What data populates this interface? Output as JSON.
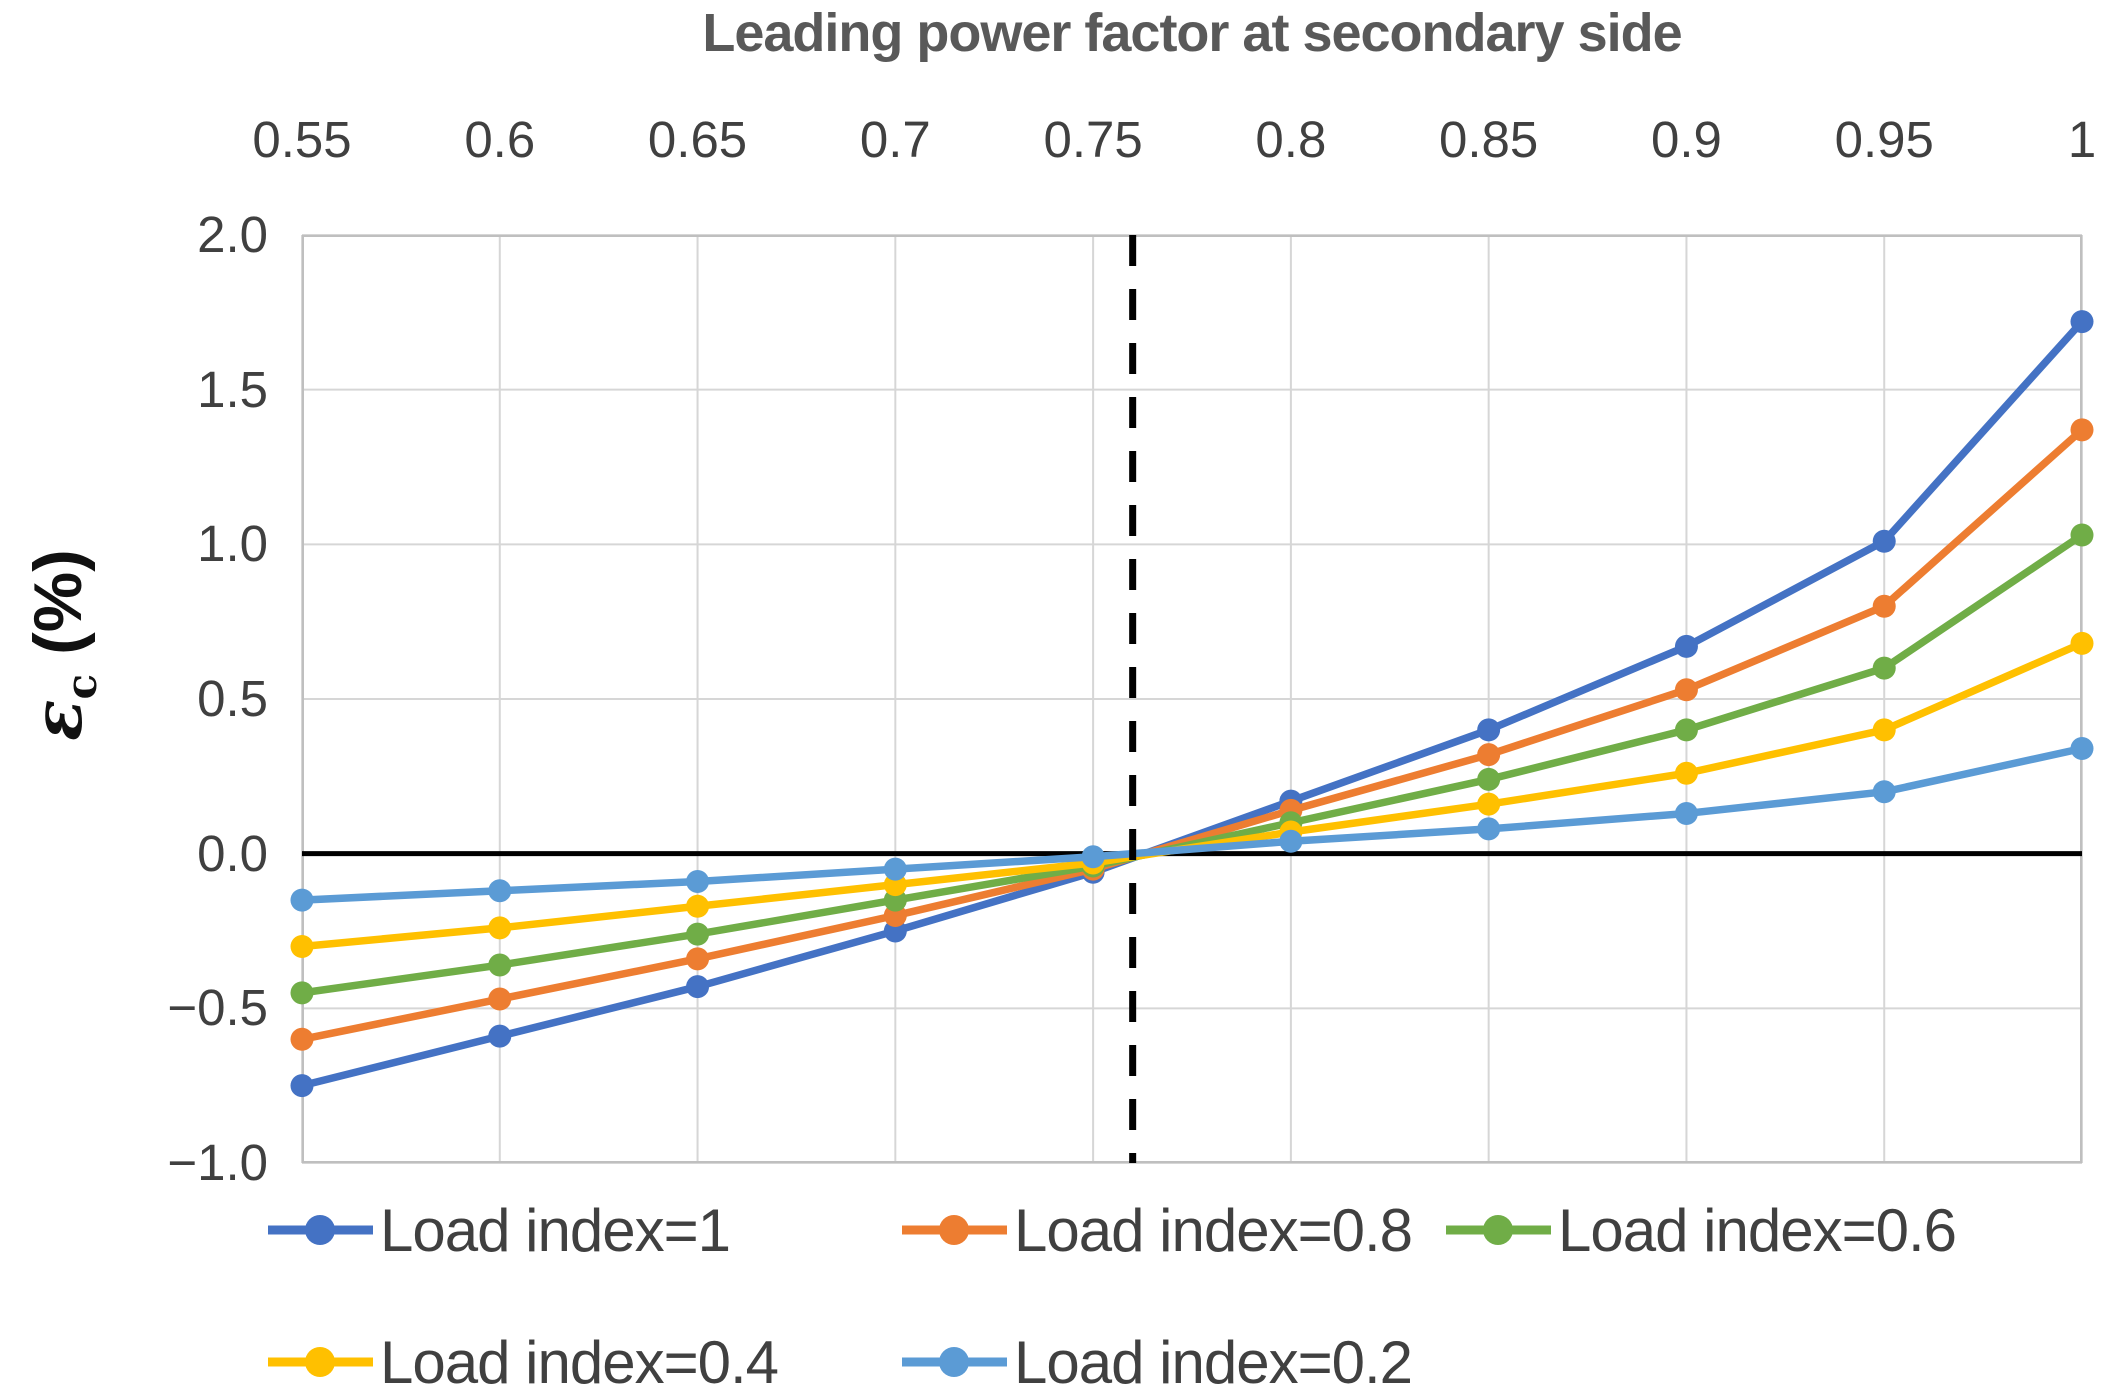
{
  "chart_data": {
    "type": "line",
    "title": "Leading power factor at secondary side",
    "xlabel": "Leading power factor at secondary side",
    "ylabel": "εc (%)",
    "ylabel_parts": {
      "symbol": "ε",
      "subscript": "c",
      "suffix": " (%)"
    },
    "xlim": [
      0.55,
      1.0
    ],
    "ylim": [
      -1.0,
      2.0
    ],
    "grid": true,
    "legend_position": "bottom",
    "x": [
      0.55,
      0.6,
      0.65,
      0.7,
      0.75,
      0.8,
      0.85,
      0.9,
      0.95,
      1.0
    ],
    "x_tick_labels": [
      "0.55",
      "0.6",
      "0.65",
      "0.7",
      "0.75",
      "0.8",
      "0.85",
      "0.9",
      "0.95",
      "1"
    ],
    "y_ticks": [
      2.0,
      1.5,
      1.0,
      0.5,
      0.0,
      -0.5,
      -1.0
    ],
    "y_tick_labels": [
      "2.0",
      "1.5",
      "1.0",
      "0.5",
      "0.0",
      "−0.5",
      "−1.0"
    ],
    "series": [
      {
        "name": "Load index=1",
        "color": "#4472C4",
        "values": [
          -0.75,
          -0.59,
          -0.43,
          -0.25,
          -0.06,
          0.17,
          0.4,
          0.67,
          1.01,
          1.72
        ]
      },
      {
        "name": "Load index=0.8",
        "color": "#ED7D31",
        "values": [
          -0.6,
          -0.47,
          -0.34,
          -0.2,
          -0.05,
          0.14,
          0.32,
          0.53,
          0.8,
          1.37
        ]
      },
      {
        "name": "Load index=0.6",
        "color": "#70AD47",
        "values": [
          -0.45,
          -0.36,
          -0.26,
          -0.15,
          -0.04,
          0.1,
          0.24,
          0.4,
          0.6,
          1.03
        ]
      },
      {
        "name": "Load index=0.4",
        "color": "#FFC000",
        "values": [
          -0.3,
          -0.24,
          -0.17,
          -0.1,
          -0.03,
          0.07,
          0.16,
          0.26,
          0.4,
          0.68
        ]
      },
      {
        "name": "Load index=0.2",
        "color": "#5B9BD5",
        "values": [
          -0.15,
          -0.12,
          -0.09,
          -0.05,
          -0.01,
          0.04,
          0.08,
          0.13,
          0.2,
          0.34
        ]
      }
    ],
    "annotations": {
      "zero_line_y": 0.0,
      "zero_line_color": "#000000",
      "dashed_vline_x": 0.76,
      "dashed_vline_color": "#000000"
    },
    "gridline_color": "#D6D6D6",
    "border_color": "#BFBFBF"
  }
}
